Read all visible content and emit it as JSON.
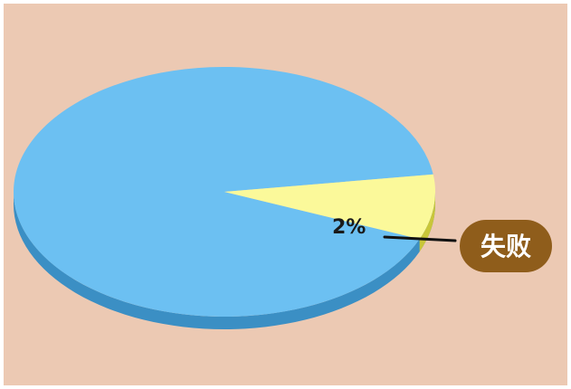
{
  "chart_data": {
    "type": "pie",
    "style": "3d",
    "slices": [
      {
        "label": "",
        "value": 98,
        "color": "#6cc0f2"
      },
      {
        "label": "失败",
        "value": 2,
        "color": "#fbf99a",
        "data_label": "2%"
      }
    ]
  },
  "colors": {
    "background": "#ecc9b3",
    "pie_main": "#6cc0f2",
    "pie_main_side": "#3b8fc4",
    "pie_small": "#fbf99a",
    "pie_small_side": "#c9c63a",
    "badge": "#8f5d1b",
    "leader_line": "#111111"
  }
}
